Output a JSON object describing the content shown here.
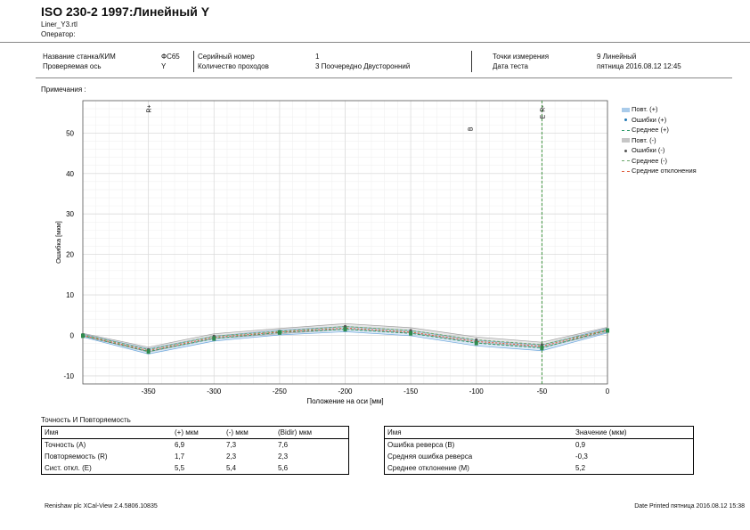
{
  "header": {
    "title": "ISO 230-2 1997:Линейный Y",
    "file": "Liner_Y3.rtl",
    "operator_label": "Оператор:"
  },
  "info": {
    "machine_label": "Название станка/КИМ",
    "machine_value": "ФС65",
    "axis_label": "Проверяемая ось",
    "axis_value": "Y",
    "serial_label": "Серийный номер",
    "serial_value": "1",
    "passes_label": "Количество проходов",
    "passes_value": "3 Поочередно Двусторонний",
    "points_label": "Точки измерения",
    "points_value": "9 Линейный",
    "date_label": "Дата теста",
    "date_value": "пятница 2016.08.12 12:45"
  },
  "notes_label": "Примечания :",
  "chart_data": {
    "type": "line",
    "xlabel": "Положение на оси [мм]",
    "ylabel": "Ошибка [мкм]",
    "xlim": [
      -400,
      0
    ],
    "ylim": [
      -12,
      58
    ],
    "xticks": [
      -350,
      -300,
      -250,
      -200,
      -150,
      -100,
      -50,
      0
    ],
    "yticks": [
      -10,
      0,
      10,
      20,
      30,
      40,
      50
    ],
    "grid": true,
    "legend_position": "right",
    "x": [
      -400,
      -350,
      -300,
      -250,
      -200,
      -150,
      -100,
      -50,
      0
    ],
    "series": [
      {
        "name": "Повт. (+)",
        "kind": "band",
        "color": "#6fa8dc",
        "upper": [
          0.3,
          -3.3,
          -0.2,
          1.3,
          2.2,
          1.2,
          -1.2,
          -2.4,
          1.8
        ],
        "lower": [
          -0.4,
          -4.6,
          -1.4,
          0.1,
          0.9,
          -0.1,
          -2.6,
          -3.8,
          0.6
        ]
      },
      {
        "name": "Ошибки (+)",
        "kind": "points",
        "color": "#1f78b4",
        "values": [
          0.0,
          -4.0,
          -0.8,
          0.7,
          1.6,
          0.5,
          -1.9,
          -3.1,
          1.2
        ]
      },
      {
        "name": "Среднее (+)",
        "kind": "line",
        "color": "#2e9c6a",
        "dash": "3,2",
        "values": [
          -0.1,
          -4.0,
          -0.8,
          0.7,
          1.5,
          0.5,
          -1.9,
          -3.1,
          1.2
        ]
      },
      {
        "name": "Повт. (-)",
        "kind": "band",
        "color": "#a0a0a0",
        "upper": [
          0.5,
          -2.9,
          0.4,
          1.7,
          2.9,
          1.9,
          -0.4,
          -1.7,
          2.0
        ],
        "lower": [
          -0.2,
          -4.1,
          -0.8,
          0.4,
          1.5,
          0.6,
          -1.8,
          -3.0,
          0.8
        ]
      },
      {
        "name": "Ошибки (-)",
        "kind": "points",
        "color": "#555555",
        "values": [
          0.2,
          -3.5,
          -0.2,
          1.0,
          2.2,
          1.2,
          -1.1,
          -2.3,
          1.4
        ]
      },
      {
        "name": "Среднее (-)",
        "kind": "line",
        "color": "#6aa86a",
        "dash": "3,2",
        "values": [
          0.2,
          -3.5,
          -0.2,
          1.0,
          2.2,
          1.2,
          -1.1,
          -2.3,
          1.4
        ]
      },
      {
        "name": "Средние отклонения",
        "kind": "line",
        "color": "#e06040",
        "dash": "2,2",
        "values": [
          0.0,
          -3.8,
          -0.5,
          0.8,
          1.8,
          0.8,
          -1.5,
          -2.7,
          1.3
        ]
      }
    ],
    "markers": [
      {
        "label": "R+",
        "x": -350,
        "y": 56
      },
      {
        "label": "B",
        "x": -105,
        "y": 51
      },
      {
        "label": "R-",
        "x": -50,
        "y": 56
      },
      {
        "label": "E",
        "x": -50,
        "y": 54
      }
    ],
    "vline_x": -50,
    "vline_color": "#2e8b2e"
  },
  "tables": {
    "title": "Точность И Повторяемость",
    "left_headers": [
      "Имя",
      "(+) мкм",
      "(-) мкм",
      "(Bidir) мкм"
    ],
    "left_rows": [
      [
        "Точность (A)",
        "6,9",
        "7,3",
        "7,6"
      ],
      [
        "Повторяемость (R)",
        "1,7",
        "2,3",
        "2,3"
      ],
      [
        "Сист. откл. (E)",
        "5,5",
        "5,4",
        "5,6"
      ]
    ],
    "right_headers": [
      "Имя",
      "Значение (мкм)"
    ],
    "right_rows": [
      [
        "Ошибка реверса (B)",
        "0,9"
      ],
      [
        "Средняя ошибка реверса",
        "-0,3"
      ],
      [
        "Среднее отклонение (M)",
        "5,2"
      ]
    ]
  },
  "footer": {
    "left": "Renishaw plc XCal-View 2.4.5806.10835",
    "right": "Date Printed пятница 2016.08.12 15:38"
  }
}
